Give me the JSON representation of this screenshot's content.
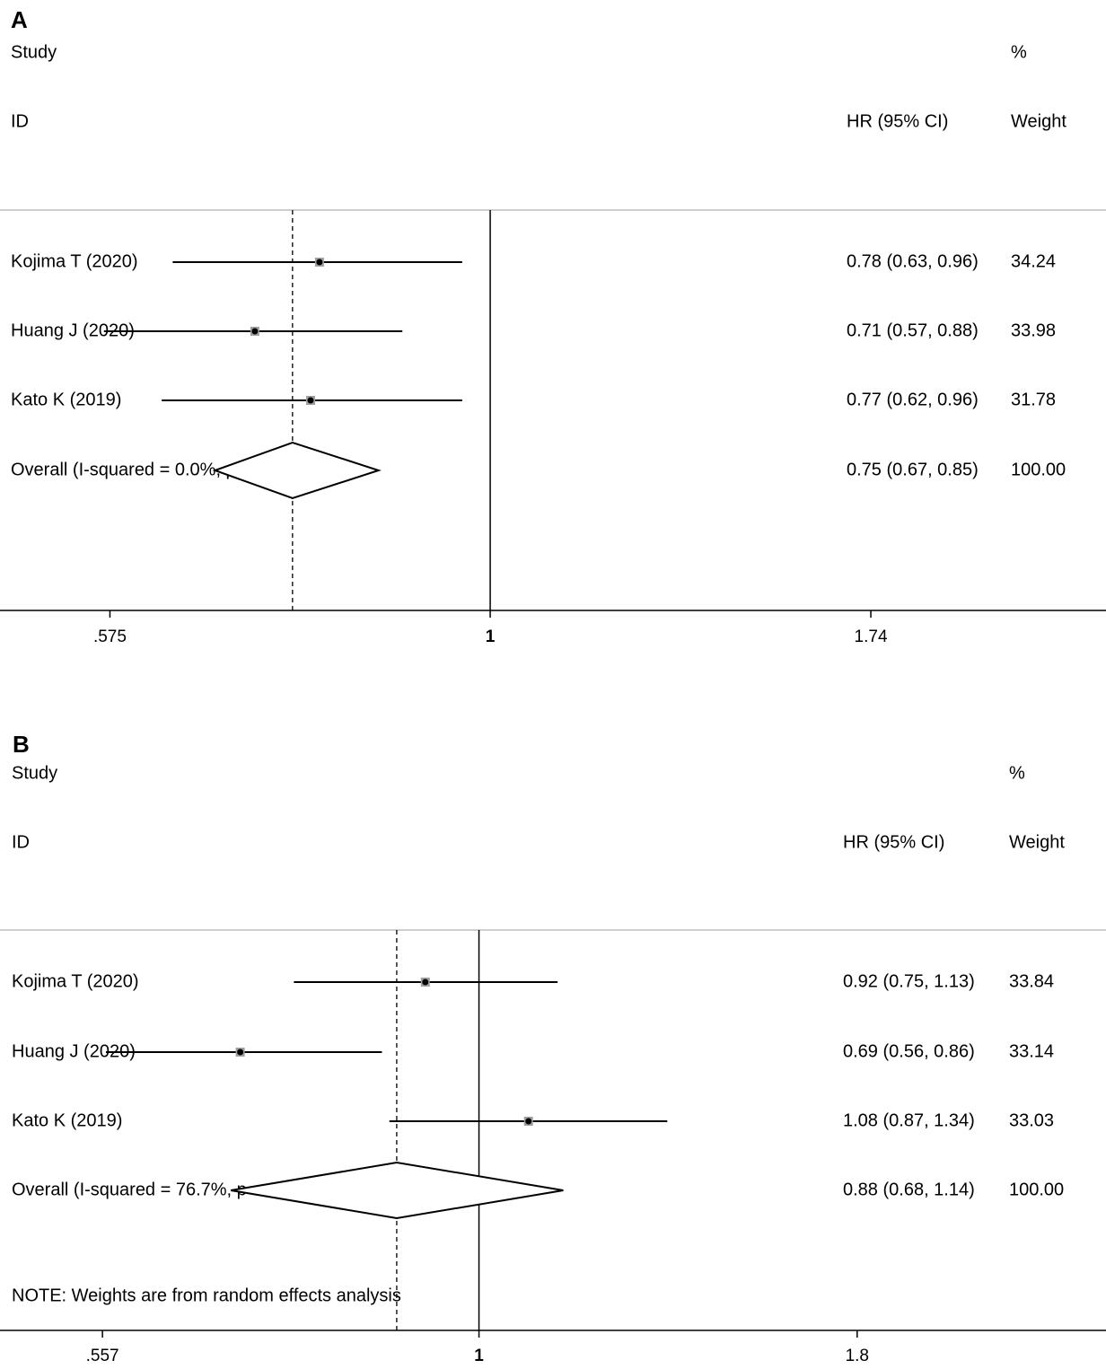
{
  "chart_data": [
    {
      "type": "forest",
      "panel": "A",
      "headers": {
        "study": "Study",
        "id": "ID",
        "hr": "HR (95% CI)",
        "pct": "%",
        "weight": "Weight"
      },
      "xscale": "log",
      "xlim": [
        0.49,
        2.45
      ],
      "ticks": [
        {
          "v": 0.575,
          "label": ".575"
        },
        {
          "v": 1,
          "label": "1"
        },
        {
          "v": 1.74,
          "label": "1.74"
        }
      ],
      "null_line": 1,
      "pooled_line": 0.75,
      "studies": [
        {
          "name": "Kojima T (2020)",
          "hr": 0.78,
          "lo": 0.63,
          "hi": 0.96,
          "text": "0.78 (0.63, 0.96)",
          "weight": "34.24"
        },
        {
          "name": "Huang J (2020)",
          "hr": 0.71,
          "lo": 0.57,
          "hi": 0.88,
          "text": "0.71 (0.57, 0.88)",
          "weight": "33.98"
        },
        {
          "name": "Kato K (2019)",
          "hr": 0.77,
          "lo": 0.62,
          "hi": 0.96,
          "text": "0.77 (0.62, 0.96)",
          "weight": "31.78"
        }
      ],
      "overall": {
        "name": "Overall  (I-squared = 0.0%, p = 0.801)",
        "hr": 0.75,
        "lo": 0.67,
        "hi": 0.85,
        "text": "0.75 (0.67, 0.85)",
        "weight": "100.00"
      },
      "note": ""
    },
    {
      "type": "forest",
      "panel": "B",
      "headers": {
        "study": "Study",
        "id": "ID",
        "hr": "HR (95% CI)",
        "pct": "%",
        "weight": "Weight"
      },
      "xscale": "log",
      "xlim": [
        0.475,
        2.65
      ],
      "ticks": [
        {
          "v": 0.557,
          "label": ".557"
        },
        {
          "v": 1,
          "label": "1"
        },
        {
          "v": 1.8,
          "label": "1.8"
        }
      ],
      "null_line": 1,
      "pooled_line": 0.88,
      "studies": [
        {
          "name": "Kojima T (2020)",
          "hr": 0.92,
          "lo": 0.75,
          "hi": 1.13,
          "text": "0.92 (0.75, 1.13)",
          "weight": "33.84"
        },
        {
          "name": "Huang J (2020)",
          "hr": 0.69,
          "lo": 0.56,
          "hi": 0.86,
          "text": "0.69 (0.56, 0.86)",
          "weight": "33.14"
        },
        {
          "name": "Kato K (2019)",
          "hr": 1.08,
          "lo": 0.87,
          "hi": 1.34,
          "text": "1.08 (0.87, 1.34)",
          "weight": "33.03"
        }
      ],
      "overall": {
        "name": "Overall  (I-squared = 76.7%, p = 0.014)",
        "hr": 0.88,
        "lo": 0.68,
        "hi": 1.14,
        "text": "0.88 (0.68, 1.14)",
        "weight": "100.00"
      },
      "note": "NOTE: Weights are from random effects analysis"
    }
  ]
}
